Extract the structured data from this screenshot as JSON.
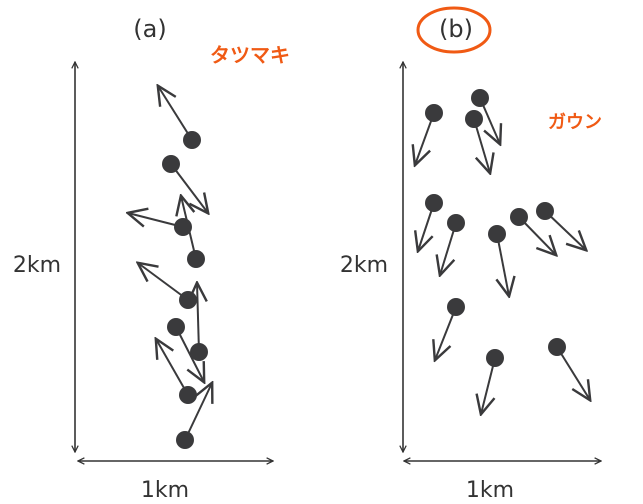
{
  "panels": [
    {
      "label": "(a)",
      "height_label": "2km",
      "width_label": "1km",
      "annotation": "タツマキ"
    },
    {
      "label": "(b)",
      "height_label": "2km",
      "width_label": "1km",
      "annotation": "ガウン"
    }
  ],
  "colors": {
    "ink": "#333333",
    "particle": "#3a3a3c",
    "annotation": "#f05a14"
  }
}
